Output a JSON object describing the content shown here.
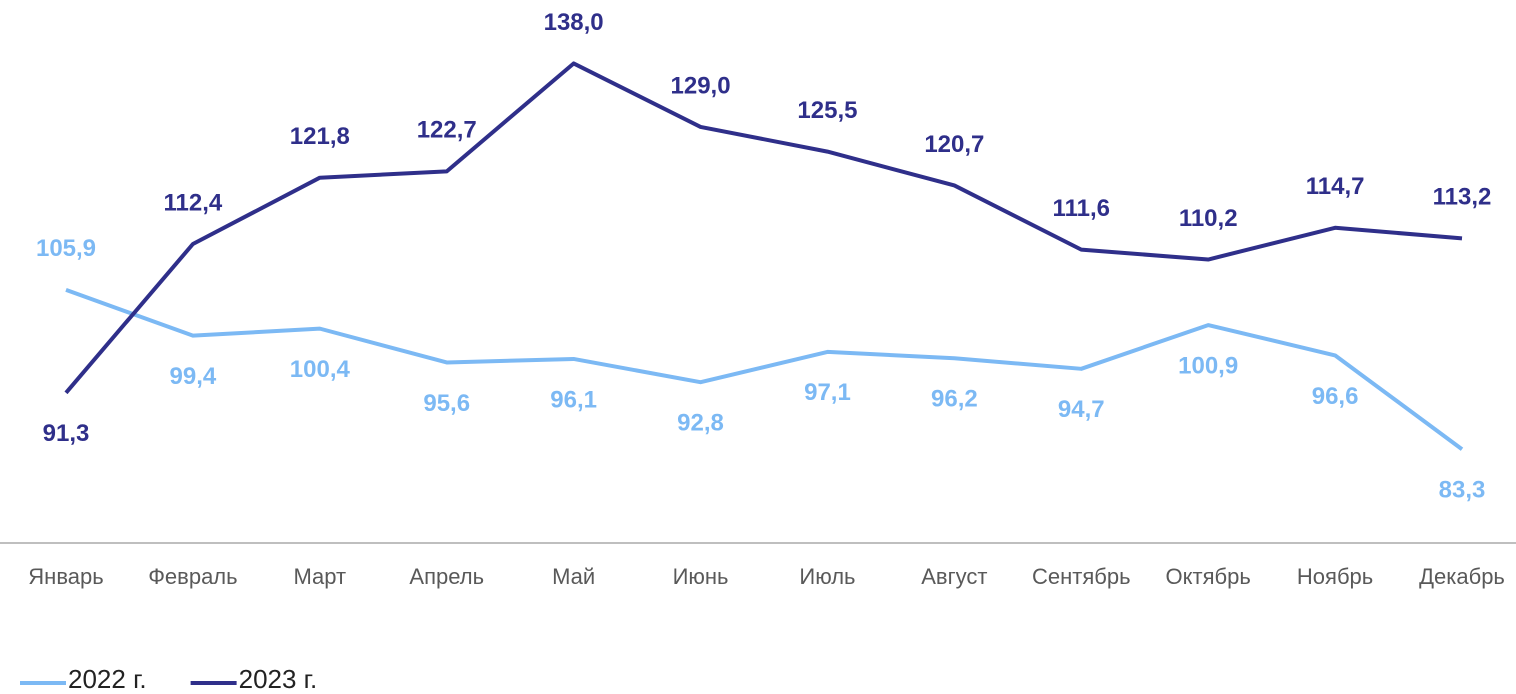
{
  "chart_data": {
    "type": "line",
    "categories": [
      "Январь",
      "Февраль",
      "Март",
      "Апрель",
      "Май",
      "Июнь",
      "Июль",
      "Август",
      "Сентябрь",
      "Октябрь",
      "Ноябрь",
      "Декабрь"
    ],
    "series": [
      {
        "name": "2022 г.",
        "color": "#7cb9f4",
        "values": [
          105.9,
          99.4,
          100.4,
          95.6,
          96.1,
          92.8,
          97.1,
          96.2,
          94.7,
          100.9,
          96.6,
          83.3
        ],
        "value_labels": [
          "105,9",
          "99,4",
          "100,4",
          "95,6",
          "96,1",
          "92,8",
          "97,1",
          "96,2",
          "94,7",
          "100,9",
          "96,6",
          "83,3"
        ]
      },
      {
        "name": "2023 г.",
        "color": "#2f2f8a",
        "values": [
          91.3,
          112.4,
          121.8,
          122.7,
          138.0,
          129.0,
          125.5,
          120.7,
          111.6,
          110.2,
          114.7,
          113.2
        ],
        "value_labels": [
          "91,3",
          "112,4",
          "121,8",
          "122,7",
          "138,0",
          "129,0",
          "125,5",
          "120,7",
          "111,6",
          "110,2",
          "114,7",
          "113,2"
        ]
      }
    ],
    "ylim": [
      70,
      147
    ],
    "legend": "bottom-left"
  }
}
